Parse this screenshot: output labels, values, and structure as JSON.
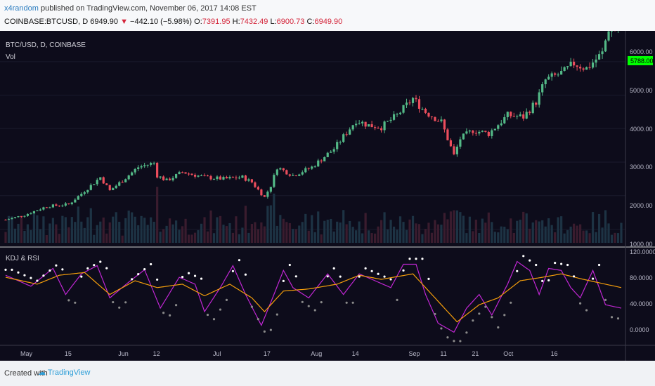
{
  "header": {
    "username": "x4random",
    "published_text": "published on TradingView.com, November 06, 2017 14:08 EST",
    "symbol": "COINBASE:BTCUSD, D",
    "last": "6949.90",
    "change_arrow": "▼",
    "change": "−442.10 (−5.98%)",
    "o_label": "O:",
    "o": "7391.95",
    "h_label": "H:",
    "h": "7432.49",
    "l_label": "L:",
    "l": "6900.73",
    "c_label": "C:",
    "c": "6949.90"
  },
  "price_pane": {
    "title": "BTC/USD, D, COINBASE",
    "vol_label": "Vol",
    "price_tag": "5788.00",
    "y_ticks": [
      "6000.00",
      "5000.00",
      "4000.00",
      "3000.00",
      "2000.00",
      "1000.00"
    ]
  },
  "indicator_pane": {
    "title": "KDJ & RSI",
    "y_ticks": [
      "120.0000",
      "80.0000",
      "40.0000",
      "0.0000"
    ]
  },
  "x_ticks": [
    "May",
    "15",
    "Jun",
    "12",
    "Jul",
    "17",
    "Aug",
    "14",
    "Sep",
    "11",
    "21",
    "Oct",
    "16"
  ],
  "footer": {
    "created_with": "Created with",
    "brand": "TradingView"
  },
  "colors": {
    "up": "#53b987",
    "down": "#eb4d5c",
    "background": "#0d0c1b",
    "k_line": "#c026d3",
    "rsi_line": "#f59e0b",
    "dots_high": "#ffffff",
    "dots_low": "#8a8a8a",
    "price_tag": "#00ff00"
  },
  "chart_data": [
    {
      "type": "candlestick",
      "title": "BTC/USD, D, COINBASE",
      "ylim": [
        800,
        6500
      ],
      "x_range": [
        "2017-04-25",
        "2017-11-06"
      ],
      "close_anchors": [
        {
          "date": "2017-04-25",
          "close": 1280
        },
        {
          "date": "2017-05-01",
          "close": 1420
        },
        {
          "date": "2017-05-08",
          "close": 1680
        },
        {
          "date": "2017-05-15",
          "close": 1740
        },
        {
          "date": "2017-05-22",
          "close": 2300
        },
        {
          "date": "2017-05-25",
          "close": 2550
        },
        {
          "date": "2017-05-28",
          "close": 2150
        },
        {
          "date": "2017-06-01",
          "close": 2450
        },
        {
          "date": "2017-06-06",
          "close": 2850
        },
        {
          "date": "2017-06-11",
          "close": 2980
        },
        {
          "date": "2017-06-12",
          "close": 2600
        },
        {
          "date": "2017-06-15",
          "close": 2450
        },
        {
          "date": "2017-06-20",
          "close": 2700
        },
        {
          "date": "2017-06-27",
          "close": 2550
        },
        {
          "date": "2017-07-03",
          "close": 2500
        },
        {
          "date": "2017-07-09",
          "close": 2550
        },
        {
          "date": "2017-07-12",
          "close": 2400
        },
        {
          "date": "2017-07-16",
          "close": 1950
        },
        {
          "date": "2017-07-18",
          "close": 2300
        },
        {
          "date": "2017-07-20",
          "close": 2850
        },
        {
          "date": "2017-07-25",
          "close": 2600
        },
        {
          "date": "2017-07-31",
          "close": 2850
        },
        {
          "date": "2017-08-07",
          "close": 3400
        },
        {
          "date": "2017-08-14",
          "close": 4250
        },
        {
          "date": "2017-08-18",
          "close": 4100
        },
        {
          "date": "2017-08-22",
          "close": 4050
        },
        {
          "date": "2017-08-27",
          "close": 4400
        },
        {
          "date": "2017-09-01",
          "close": 4900
        },
        {
          "date": "2017-09-05",
          "close": 4500
        },
        {
          "date": "2017-09-10",
          "close": 4200
        },
        {
          "date": "2017-09-14",
          "close": 3200
        },
        {
          "date": "2017-09-16",
          "close": 3700
        },
        {
          "date": "2017-09-20",
          "close": 3950
        },
        {
          "date": "2017-09-25",
          "close": 3850
        },
        {
          "date": "2017-10-01",
          "close": 4400
        },
        {
          "date": "2017-10-06",
          "close": 4350
        },
        {
          "date": "2017-10-10",
          "close": 4800
        },
        {
          "date": "2017-10-13",
          "close": 5450
        },
        {
          "date": "2017-10-19",
          "close": 5700
        },
        {
          "date": "2017-10-22",
          "close": 5950
        },
        {
          "date": "2017-10-26",
          "close": 5800
        },
        {
          "date": "2017-10-31",
          "close": 6250
        },
        {
          "date": "2017-11-02",
          "close": 7000
        },
        {
          "date": "2017-11-06",
          "close": 6950
        }
      ]
    },
    {
      "type": "line",
      "title": "KDJ & RSI",
      "ylim": [
        -10,
        125
      ],
      "series": [
        {
          "name": "K",
          "anchors": [
            {
              "date": "2017-04-25",
              "value": 88
            },
            {
              "date": "2017-05-03",
              "value": 72
            },
            {
              "date": "2017-05-10",
              "value": 98
            },
            {
              "date": "2017-05-14",
              "value": 60
            },
            {
              "date": "2017-05-19",
              "value": 90
            },
            {
              "date": "2017-05-24",
              "value": 102
            },
            {
              "date": "2017-05-28",
              "value": 55
            },
            {
              "date": "2017-06-03",
              "value": 78
            },
            {
              "date": "2017-06-08",
              "value": 96
            },
            {
              "date": "2017-06-13",
              "value": 40
            },
            {
              "date": "2017-06-19",
              "value": 85
            },
            {
              "date": "2017-06-24",
              "value": 75
            },
            {
              "date": "2017-06-27",
              "value": 35
            },
            {
              "date": "2017-07-02",
              "value": 70
            },
            {
              "date": "2017-07-06",
              "value": 102
            },
            {
              "date": "2017-07-10",
              "value": 60
            },
            {
              "date": "2017-07-15",
              "value": 15
            },
            {
              "date": "2017-07-19",
              "value": 60
            },
            {
              "date": "2017-07-22",
              "value": 95
            },
            {
              "date": "2017-07-25",
              "value": 70
            },
            {
              "date": "2017-07-30",
              "value": 55
            },
            {
              "date": "2017-08-05",
              "value": 90
            },
            {
              "date": "2017-08-10",
              "value": 60
            },
            {
              "date": "2017-08-15",
              "value": 90
            },
            {
              "date": "2017-08-20",
              "value": 80
            },
            {
              "date": "2017-08-25",
              "value": 70
            },
            {
              "date": "2017-08-29",
              "value": 104
            },
            {
              "date": "2017-09-02",
              "value": 104
            },
            {
              "date": "2017-09-05",
              "value": 60
            },
            {
              "date": "2017-09-09",
              "value": 18
            },
            {
              "date": "2017-09-14",
              "value": 5
            },
            {
              "date": "2017-09-18",
              "value": 40
            },
            {
              "date": "2017-09-22",
              "value": 60
            },
            {
              "date": "2017-09-26",
              "value": 30
            },
            {
              "date": "2017-10-01",
              "value": 75
            },
            {
              "date": "2017-10-04",
              "value": 108
            },
            {
              "date": "2017-10-08",
              "value": 95
            },
            {
              "date": "2017-10-11",
              "value": 60
            },
            {
              "date": "2017-10-14",
              "value": 98
            },
            {
              "date": "2017-10-18",
              "value": 95
            },
            {
              "date": "2017-10-21",
              "value": 70
            },
            {
              "date": "2017-10-24",
              "value": 55
            },
            {
              "date": "2017-10-28",
              "value": 95
            },
            {
              "date": "2017-11-01",
              "value": 45
            },
            {
              "date": "2017-11-06",
              "value": 40
            }
          ]
        },
        {
          "name": "RSI",
          "anchors": [
            {
              "date": "2017-04-25",
              "value": 85
            },
            {
              "date": "2017-05-05",
              "value": 75
            },
            {
              "date": "2017-05-12",
              "value": 88
            },
            {
              "date": "2017-05-20",
              "value": 92
            },
            {
              "date": "2017-05-28",
              "value": 60
            },
            {
              "date": "2017-06-05",
              "value": 80
            },
            {
              "date": "2017-06-12",
              "value": 70
            },
            {
              "date": "2017-06-20",
              "value": 75
            },
            {
              "date": "2017-06-27",
              "value": 58
            },
            {
              "date": "2017-07-05",
              "value": 75
            },
            {
              "date": "2017-07-12",
              "value": 55
            },
            {
              "date": "2017-07-16",
              "value": 35
            },
            {
              "date": "2017-07-22",
              "value": 65
            },
            {
              "date": "2017-07-30",
              "value": 68
            },
            {
              "date": "2017-08-08",
              "value": 75
            },
            {
              "date": "2017-08-15",
              "value": 88
            },
            {
              "date": "2017-08-22",
              "value": 82
            },
            {
              "date": "2017-09-01",
              "value": 90
            },
            {
              "date": "2017-09-08",
              "value": 55
            },
            {
              "date": "2017-09-15",
              "value": 20
            },
            {
              "date": "2017-09-22",
              "value": 45
            },
            {
              "date": "2017-09-28",
              "value": 55
            },
            {
              "date": "2017-10-05",
              "value": 80
            },
            {
              "date": "2017-10-12",
              "value": 85
            },
            {
              "date": "2017-10-18",
              "value": 90
            },
            {
              "date": "2017-10-25",
              "value": 82
            },
            {
              "date": "2017-11-06",
              "value": 70
            }
          ]
        }
      ]
    }
  ]
}
